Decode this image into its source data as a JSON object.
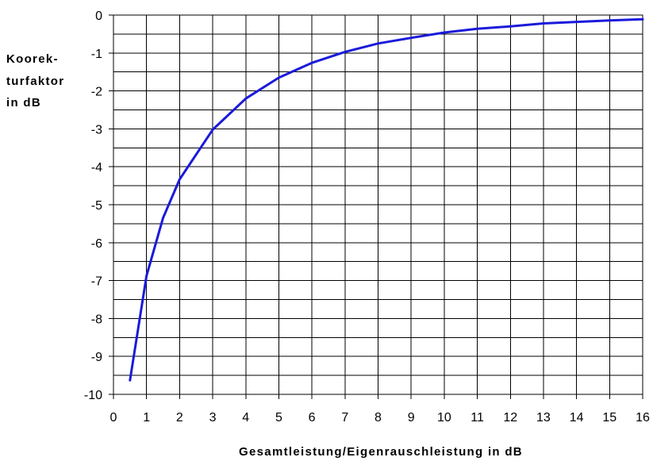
{
  "chart_data": {
    "type": "line",
    "title": "",
    "xlabel": "Gesamtleistung/Eigenrauschleistung in dB",
    "ylabel_lines": [
      "Koorek-",
      "turfaktor",
      "in dB"
    ],
    "xlim": [
      0,
      16
    ],
    "ylim": [
      -10,
      0
    ],
    "x_ticks": [
      0,
      1,
      2,
      3,
      4,
      5,
      6,
      7,
      8,
      9,
      10,
      11,
      12,
      13,
      14,
      15,
      16
    ],
    "y_ticks": [
      0,
      -1,
      -2,
      -3,
      -4,
      -5,
      -6,
      -7,
      -8,
      -9,
      -10
    ],
    "x_tick_labels": [
      "0",
      "1",
      "2",
      "3",
      "4",
      "5",
      "6",
      "7",
      "8",
      "9",
      "10",
      "11",
      "12",
      "13",
      "14",
      "15",
      "16"
    ],
    "y_tick_labels": [
      "0",
      "-1",
      "-2",
      "-3",
      "-4",
      "-5",
      "-6",
      "-7",
      "-8",
      "-9",
      "-10"
    ],
    "grid": true,
    "y_minor_step": 0.5,
    "series": [
      {
        "color": "#1a1adb",
        "x": [
          0.5,
          1,
          1.5,
          2,
          3,
          4,
          5,
          6,
          7,
          8,
          9,
          10,
          11,
          12,
          13,
          14,
          15,
          16
        ],
        "y": [
          -9.63,
          -6.87,
          -5.35,
          -4.33,
          -3.02,
          -2.2,
          -1.65,
          -1.26,
          -0.97,
          -0.75,
          -0.6,
          -0.46,
          -0.36,
          -0.3,
          -0.22,
          -0.18,
          -0.14,
          -0.11
        ]
      }
    ]
  }
}
